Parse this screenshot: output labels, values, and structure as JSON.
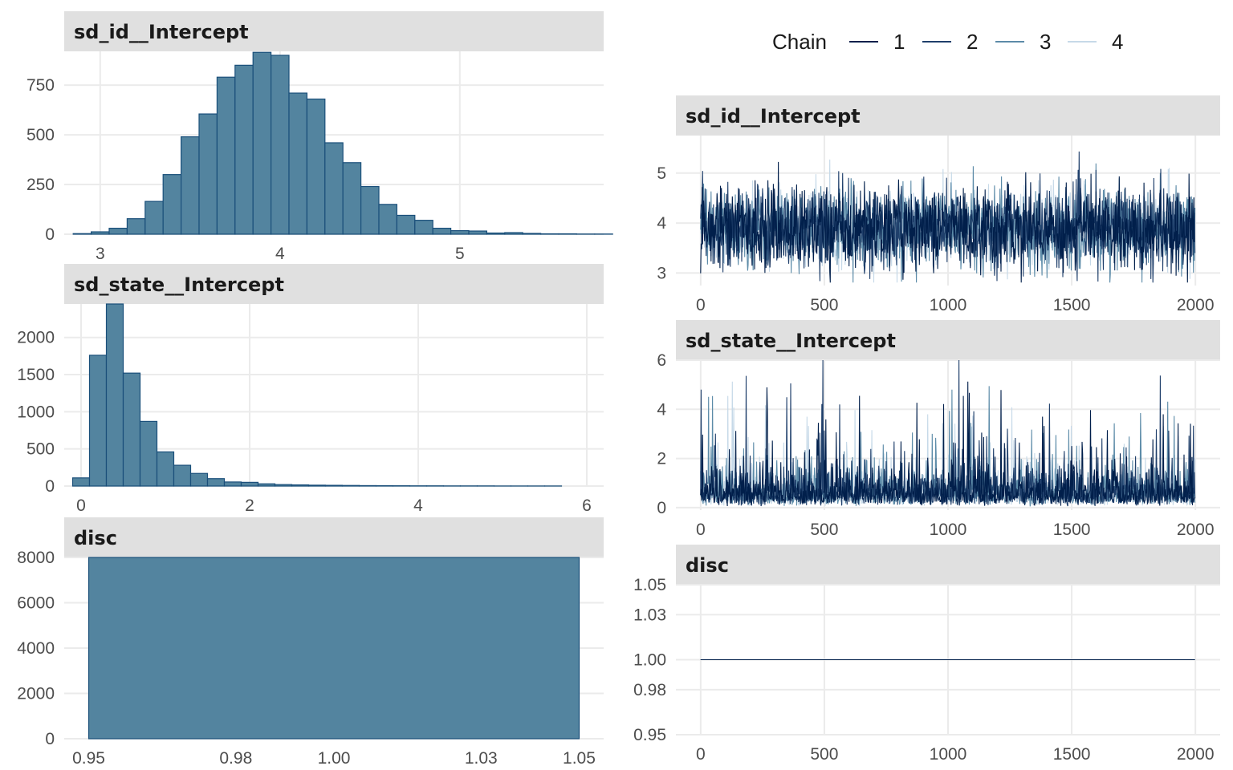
{
  "legend": {
    "title": "Chain",
    "entries": [
      {
        "label": "1",
        "color": "#011f4b"
      },
      {
        "label": "2",
        "color": "#1f3f6b"
      },
      {
        "label": "3",
        "color": "#5c8ba8"
      },
      {
        "label": "4",
        "color": "#c6d9e8"
      }
    ]
  },
  "colors": {
    "hist_fill": "#53849f",
    "hist_outline": "#1a4f7a",
    "strip_bg": "#e0e0e0",
    "grid": "#ebebeb"
  },
  "chart_data": [
    {
      "type": "bar",
      "role": "histogram",
      "title": "sd_id__Intercept",
      "xlim": [
        2.8,
        5.8
      ],
      "ylim": [
        0,
        920
      ],
      "xticks": [
        "3",
        "4",
        "5"
      ],
      "yticks": [
        "0",
        "250",
        "500",
        "750"
      ],
      "bin_start": 2.85,
      "bin_width": 0.1,
      "values": [
        3,
        12,
        30,
        78,
        165,
        300,
        490,
        605,
        790,
        850,
        915,
        900,
        710,
        680,
        460,
        360,
        240,
        150,
        95,
        70,
        30,
        18,
        16,
        6,
        8,
        4,
        2,
        2,
        1,
        1
      ]
    },
    {
      "type": "bar",
      "role": "histogram",
      "title": "sd_state__Intercept",
      "xlim": [
        -0.2,
        6.2
      ],
      "ylim": [
        0,
        2450
      ],
      "xticks": [
        "0",
        "2",
        "4",
        "6"
      ],
      "yticks": [
        "0",
        "500",
        "1000",
        "1500",
        "2000"
      ],
      "bin_start": -0.1,
      "bin_width": 0.2,
      "values": [
        110,
        1760,
        2450,
        1520,
        870,
        460,
        280,
        170,
        100,
        55,
        50,
        30,
        20,
        16,
        12,
        10,
        8,
        6,
        5,
        4,
        3,
        3,
        2,
        2,
        2,
        1,
        1,
        1,
        1
      ]
    },
    {
      "type": "bar",
      "role": "histogram",
      "title": "disc",
      "xlim": [
        0.945,
        1.055
      ],
      "ylim": [
        0,
        8000
      ],
      "xticks": [
        "0.95",
        "0.98",
        "1.00",
        "1.03",
        "1.05"
      ],
      "yticks": [
        "0",
        "2000",
        "4000",
        "6000",
        "8000"
      ],
      "bin_start": 0.95,
      "bin_width": 0.1,
      "values": [
        8000
      ]
    },
    {
      "type": "line",
      "role": "trace",
      "title": "sd_id__Intercept",
      "xlim": [
        -100,
        2100
      ],
      "ylim": [
        2.75,
        5.75
      ],
      "xticks": [
        "0",
        "500",
        "1000",
        "1500",
        "2000"
      ],
      "yticks": [
        "3",
        "4",
        "5"
      ],
      "iterations": 2000,
      "series": [
        {
          "chain": "1",
          "mean": 3.9,
          "sd": 0.4
        },
        {
          "chain": "2",
          "mean": 3.9,
          "sd": 0.4
        },
        {
          "chain": "3",
          "mean": 3.9,
          "sd": 0.38
        },
        {
          "chain": "4",
          "mean": 3.9,
          "sd": 0.36
        }
      ]
    },
    {
      "type": "line",
      "role": "trace",
      "title": "sd_state__Intercept",
      "xlim": [
        -100,
        2100
      ],
      "ylim": [
        -0.1,
        6.0
      ],
      "xticks": [
        "0",
        "500",
        "1000",
        "1500",
        "2000"
      ],
      "yticks": [
        "0",
        "2",
        "4",
        "6"
      ],
      "iterations": 2000,
      "series": [
        {
          "chain": "1",
          "median": 0.55,
          "max": 5.6
        },
        {
          "chain": "2",
          "median": 0.55,
          "max": 5.4
        },
        {
          "chain": "3",
          "median": 0.55,
          "max": 5.7
        },
        {
          "chain": "4",
          "median": 0.55,
          "max": 4.8
        }
      ]
    },
    {
      "type": "line",
      "role": "trace",
      "title": "disc",
      "xlim": [
        -100,
        2100
      ],
      "ylim": [
        0.95,
        1.05
      ],
      "xticks": [
        "0",
        "500",
        "1000",
        "1500",
        "2000"
      ],
      "yticks": [
        "0.95",
        "0.98",
        "1.00",
        "1.03",
        "1.05"
      ],
      "iterations": 2000,
      "series": [
        {
          "chain": "1",
          "value": 1.0
        },
        {
          "chain": "2",
          "value": 1.0
        },
        {
          "chain": "3",
          "value": 1.0
        },
        {
          "chain": "4",
          "value": 1.0
        }
      ]
    }
  ]
}
